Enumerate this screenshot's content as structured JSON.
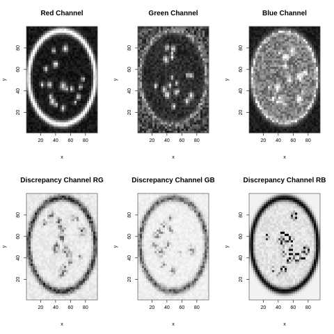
{
  "figure": {
    "background": "#ffffff"
  },
  "chart_data": [
    {
      "type": "heatmap",
      "title": "Red Channel",
      "pattern": "red",
      "xlabel": "x",
      "ylabel": "y",
      "xlim": [
        1,
        96
      ],
      "ylim": [
        1,
        100
      ],
      "xticks": [
        "20",
        "40",
        "60",
        "80"
      ],
      "yticks": [
        "20",
        "40",
        "60",
        "80"
      ],
      "colormap": "grayscale (black = low, white = high)",
      "grid": false
    },
    {
      "type": "heatmap",
      "title": "Green Channel",
      "pattern": "green",
      "xlabel": "x",
      "ylabel": "y",
      "xlim": [
        1,
        96
      ],
      "ylim": [
        1,
        100
      ],
      "xticks": [
        "20",
        "40",
        "60",
        "80"
      ],
      "yticks": [
        "20",
        "40",
        "60",
        "80"
      ],
      "colormap": "grayscale (black = low, white = high)",
      "grid": false
    },
    {
      "type": "heatmap",
      "title": "Blue Channel",
      "pattern": "blue",
      "xlabel": "x",
      "ylabel": "y",
      "xlim": [
        1,
        96
      ],
      "ylim": [
        1,
        100
      ],
      "xticks": [
        "20",
        "40",
        "60",
        "80"
      ],
      "yticks": [
        "20",
        "40",
        "60",
        "80"
      ],
      "colormap": "grayscale (black = low, white = high)",
      "grid": false
    },
    {
      "type": "heatmap",
      "title": "Discrepancy Channel RG",
      "pattern": "rg",
      "xlabel": "x",
      "ylabel": "y",
      "xlim": [
        1,
        96
      ],
      "ylim": [
        1,
        100
      ],
      "xticks": [
        "20",
        "40",
        "60",
        "80"
      ],
      "yticks": [
        "20",
        "40",
        "60",
        "80"
      ],
      "colormap": "grayscale (white = low, black = high)",
      "grid": false
    },
    {
      "type": "heatmap",
      "title": "Discrepancy Channel GB",
      "pattern": "gb",
      "xlabel": "x",
      "ylabel": "y",
      "xlim": [
        1,
        96
      ],
      "ylim": [
        1,
        100
      ],
      "xticks": [
        "20",
        "40",
        "60",
        "80"
      ],
      "yticks": [
        "20",
        "40",
        "60",
        "80"
      ],
      "colormap": "grayscale (white = low, black = high)",
      "grid": false
    },
    {
      "type": "heatmap",
      "title": "Discrepancy Channel RB",
      "pattern": "rb",
      "xlabel": "x",
      "ylabel": "y",
      "xlim": [
        1,
        96
      ],
      "ylim": [
        1,
        100
      ],
      "xticks": [
        "20",
        "40",
        "60",
        "80"
      ],
      "yticks": [
        "20",
        "40",
        "60",
        "80"
      ],
      "colormap": "grayscale (white = low, black = high)",
      "grid": false
    }
  ]
}
